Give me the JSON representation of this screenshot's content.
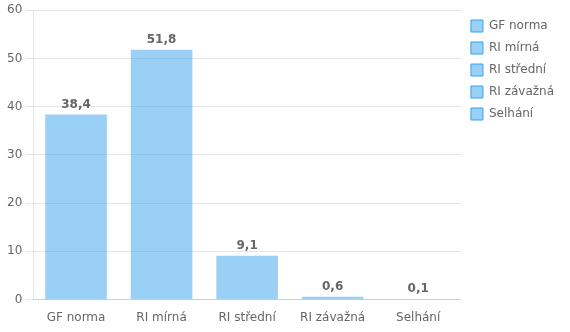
{
  "chart_data": {
    "type": "bar",
    "categories": [
      "GF norma",
      "RI mírná",
      "RI střední",
      "RI závažná",
      "Selhání"
    ],
    "values": [
      38.4,
      51.8,
      9.1,
      0.6,
      0.1
    ],
    "value_labels": [
      "38,4",
      "51,8",
      "9,1",
      "0,6",
      "0,1"
    ],
    "data_labels": true,
    "ylim": [
      0,
      60
    ],
    "yticks": [
      0,
      10,
      20,
      30,
      40,
      50,
      60
    ],
    "grid": true,
    "legend": "upper right"
  }
}
